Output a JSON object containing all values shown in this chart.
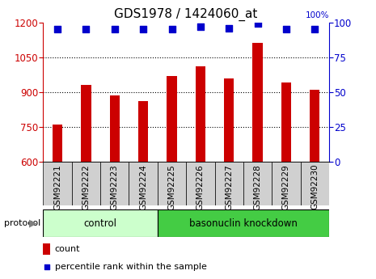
{
  "title": "GDS1978 / 1424060_at",
  "samples": [
    "GSM92221",
    "GSM92222",
    "GSM92223",
    "GSM92224",
    "GSM92225",
    "GSM92226",
    "GSM92227",
    "GSM92228",
    "GSM92229",
    "GSM92230"
  ],
  "counts": [
    760,
    930,
    885,
    860,
    970,
    1010,
    960,
    1110,
    940,
    910
  ],
  "percentile_ranks": [
    95,
    95,
    95,
    95,
    95,
    97,
    96,
    99,
    95,
    95
  ],
  "ylim_left": [
    600,
    1200
  ],
  "ylim_right": [
    0,
    100
  ],
  "yticks_left": [
    600,
    750,
    900,
    1050,
    1200
  ],
  "yticks_right": [
    0,
    25,
    50,
    75,
    100
  ],
  "bar_color": "#cc0000",
  "dot_color": "#0000cc",
  "control_group_count": 4,
  "knockdown_group_count": 6,
  "control_label": "control",
  "knockdown_label": "basonuclin knockdown",
  "protocol_label": "protocol",
  "legend_count_label": "count",
  "legend_pct_label": "percentile rank within the sample",
  "control_color": "#ccffcc",
  "knockdown_color": "#44cc44",
  "bar_width": 0.35,
  "dot_size": 28,
  "xlabel_fontsize": 7.5,
  "title_fontsize": 11,
  "tick_fontsize": 8.5
}
